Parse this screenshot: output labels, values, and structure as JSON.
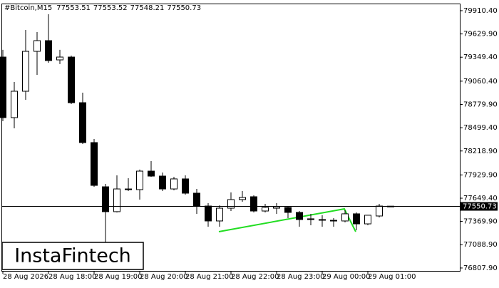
{
  "chart_data": {
    "type": "candlestick",
    "symbol": "#Bitcoin,M15",
    "watermark": "InstaFintech",
    "categories": [
      "28 Aug 2026",
      null,
      null,
      null,
      "28 Aug 18:00",
      null,
      null,
      null,
      "28 Aug 19:00",
      null,
      null,
      null,
      "28 Aug 20:00",
      null,
      null,
      null,
      "28 Aug 21:00",
      null,
      null,
      null,
      "28 Aug 22:00",
      null,
      null,
      null,
      "28 Aug 23:00",
      null,
      null,
      null,
      "29 Aug 00:00",
      null,
      null,
      null,
      "29 Aug 01:00",
      null,
      null
    ],
    "open": [
      79351,
      78621,
      78939,
      79420,
      79549,
      79317,
      79351,
      78801,
      78320,
      77787,
      77487,
      77753,
      77753,
      77976,
      77916,
      77761,
      77882,
      77710,
      77555,
      77375,
      77529,
      77633,
      77667,
      77495,
      77529,
      77538,
      77478,
      77401,
      77392,
      77383,
      77375,
      77461,
      77340,
      77435,
      77553.51
    ],
    "high": [
      79438,
      79051,
      79678,
      79652,
      79867,
      79438,
      79369,
      78922,
      78363,
      77822,
      77925,
      77890,
      77994,
      78097,
      77959,
      77908,
      77925,
      77761,
      77590,
      77564,
      77719,
      77736,
      77684,
      77581,
      77590,
      77547,
      77495,
      77461,
      77444,
      77409,
      77504,
      77478,
      77444,
      77581,
      77553.52
    ],
    "low": [
      78578,
      78492,
      78836,
      79137,
      79283,
      79266,
      78784,
      78303,
      77787,
      77117,
      77478,
      77736,
      77633,
      77908,
      77736,
      77744,
      77693,
      77461,
      77306,
      77306,
      77495,
      77607,
      77478,
      77478,
      77461,
      77409,
      77306,
      77323,
      77306,
      77306,
      77358,
      77263,
      77323,
      77418,
      77548.21
    ],
    "close": [
      78621,
      78939,
      79420,
      79549,
      79309,
      79351,
      78801,
      78320,
      77804,
      77487,
      77761,
      77761,
      77976,
      77916,
      77761,
      77882,
      77710,
      77555,
      77375,
      77529,
      77633,
      77658,
      77495,
      77538,
      77547,
      77478,
      77392,
      77392,
      77392,
      77383,
      77461,
      77340,
      77444,
      77555,
      77550.73
    ],
    "up_color": "#ffffff",
    "down_color": "#000000",
    "ylim": [
      76773,
      79996
    ],
    "yticks": [
      {
        "value": 79910.4,
        "label": "79910.40"
      },
      {
        "value": 79629.9,
        "label": "79629.90"
      },
      {
        "value": 79349.4,
        "label": "79349.40"
      },
      {
        "value": 79060.4,
        "label": "79060.40"
      },
      {
        "value": 78779.9,
        "label": "78779.90"
      },
      {
        "value": 78499.4,
        "label": "78499.40"
      },
      {
        "value": 78218.9,
        "label": "78218.90"
      },
      {
        "value": 77929.9,
        "label": "77929.90"
      },
      {
        "value": 77649.4,
        "label": "77649.40"
      },
      {
        "value": 77369.9,
        "label": "77369.90"
      },
      {
        "value": 77088.9,
        "label": "77088.90"
      },
      {
        "value": 76807.9,
        "label": "76807.90"
      }
    ]
  }
}
